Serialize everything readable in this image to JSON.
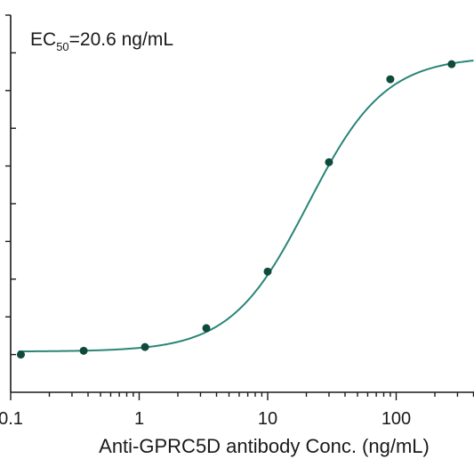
{
  "chart_data": {
    "type": "scatter",
    "title": "",
    "xlabel": "Anti-GPRC5D antibody Conc. (ng/mL)",
    "ylabel": "",
    "x_scale": "log",
    "xlim": [
      0.1,
      400
    ],
    "ylim": [
      0,
      100
    ],
    "x_ticks": [
      {
        "value": 0.1,
        "label": "0.1"
      },
      {
        "value": 1,
        "label": "1"
      },
      {
        "value": 10,
        "label": "10"
      },
      {
        "value": 100,
        "label": "100"
      }
    ],
    "annotation": {
      "prefix": "EC",
      "subscript": "50",
      "suffix": "=20.6 ng/mL"
    },
    "colors": {
      "points": "#0f4a3a",
      "curve": "#2a8577",
      "axis": "#1a1a1a"
    },
    "series": [
      {
        "x": [
          0.12,
          0.37,
          1.11,
          3.33,
          10,
          30,
          90,
          270
        ],
        "y": [
          10,
          11,
          12,
          17,
          32,
          61,
          83,
          87
        ]
      }
    ],
    "fit": {
      "bottom": 10.8,
      "top": 89.0,
      "ec50": 20.6,
      "hill": 1.45
    }
  }
}
